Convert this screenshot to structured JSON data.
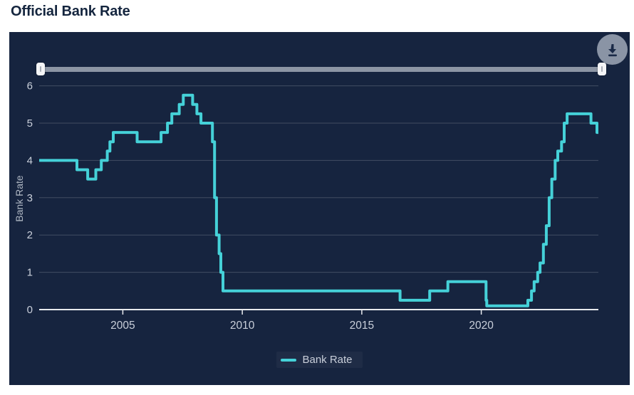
{
  "page": {
    "title": "Official Bank Rate"
  },
  "toolbar": {
    "download_tooltip": "Download"
  },
  "slider": {
    "left_handle_position": "min",
    "right_handle_position": "max"
  },
  "colors": {
    "panel_background": "#16243F",
    "line": "#45D1D8",
    "gridline": "#4A5568",
    "axis": "#E8EAEE",
    "tick_text": "#C9CFDA",
    "slider": "#8C95A4",
    "download_button": "#8A94A5",
    "title_text": "#14253E"
  },
  "chart_data": {
    "type": "line",
    "step": true,
    "title": "Official Bank Rate",
    "xlabel": "",
    "ylabel": "Bank Rate",
    "xlim": [
      2001.5,
      2024.9
    ],
    "ylim": [
      0,
      6.3
    ],
    "x_ticks": [
      2005,
      2010,
      2015,
      2020
    ],
    "y_ticks": [
      0,
      1,
      2,
      3,
      4,
      5,
      6
    ],
    "grid": "horizontal",
    "legend_position": "bottom",
    "series": [
      {
        "name": "Bank Rate",
        "color": "#45D1D8",
        "points": [
          [
            2001.5,
            4.0
          ],
          [
            2003.08,
            3.75
          ],
          [
            2003.53,
            3.5
          ],
          [
            2003.87,
            3.75
          ],
          [
            2004.1,
            4.0
          ],
          [
            2004.35,
            4.25
          ],
          [
            2004.46,
            4.5
          ],
          [
            2004.6,
            4.75
          ],
          [
            2005.6,
            4.5
          ],
          [
            2006.6,
            4.75
          ],
          [
            2006.87,
            5.0
          ],
          [
            2007.05,
            5.25
          ],
          [
            2007.36,
            5.5
          ],
          [
            2007.53,
            5.75
          ],
          [
            2007.92,
            5.5
          ],
          [
            2008.1,
            5.25
          ],
          [
            2008.27,
            5.0
          ],
          [
            2008.75,
            4.5
          ],
          [
            2008.84,
            3.0
          ],
          [
            2008.92,
            2.0
          ],
          [
            2009.03,
            1.5
          ],
          [
            2009.1,
            1.0
          ],
          [
            2009.19,
            0.5
          ],
          [
            2016.6,
            0.25
          ],
          [
            2017.84,
            0.5
          ],
          [
            2018.6,
            0.75
          ],
          [
            2020.2,
            0.25
          ],
          [
            2020.23,
            0.1
          ],
          [
            2021.95,
            0.25
          ],
          [
            2022.1,
            0.5
          ],
          [
            2022.21,
            0.75
          ],
          [
            2022.36,
            1.0
          ],
          [
            2022.46,
            1.25
          ],
          [
            2022.6,
            1.75
          ],
          [
            2022.72,
            2.25
          ],
          [
            2022.84,
            3.0
          ],
          [
            2022.95,
            3.5
          ],
          [
            2023.09,
            4.0
          ],
          [
            2023.2,
            4.25
          ],
          [
            2023.36,
            4.5
          ],
          [
            2023.47,
            5.0
          ],
          [
            2023.59,
            5.25
          ],
          [
            2024.59,
            5.0
          ],
          [
            2024.84,
            4.75
          ]
        ]
      }
    ]
  }
}
